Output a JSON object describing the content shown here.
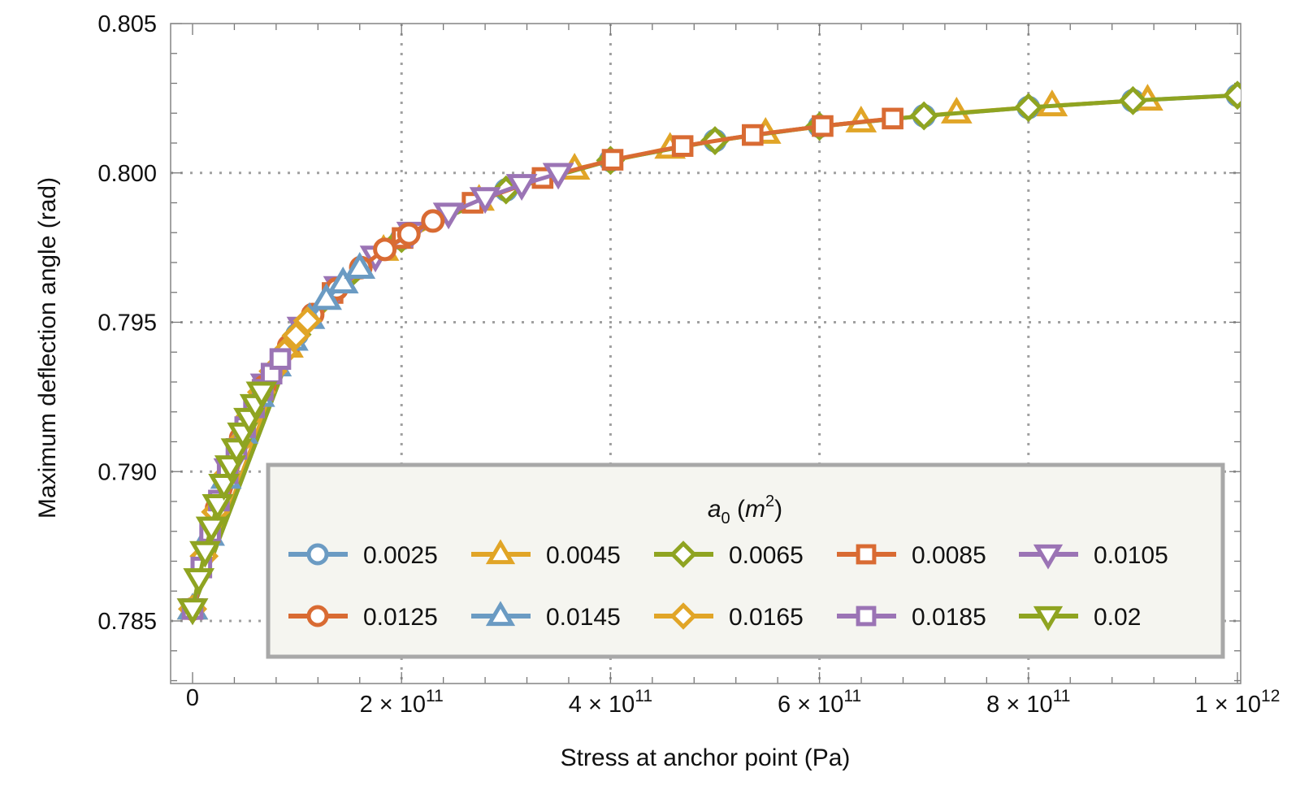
{
  "chart_data": {
    "type": "line",
    "title": "",
    "xlabel": "Stress at anchor point (Pa)",
    "ylabel": "Maximum deflection angle (rad)",
    "xlim": [
      0,
      1000000000000.0
    ],
    "ylim": [
      0.7829,
      0.805
    ],
    "x_unit_note": "series x values are in units of 1e11 Pa",
    "grid": true,
    "xticks": [
      {
        "value": 0,
        "label": "0",
        "mantissa": "",
        "exponent": ""
      },
      {
        "value": 200000000000.0,
        "label": "2 × 10^11",
        "mantissa": "2 × 10",
        "exponent": "11"
      },
      {
        "value": 400000000000.0,
        "label": "4 × 10^11",
        "mantissa": "4 × 10",
        "exponent": "11"
      },
      {
        "value": 600000000000.0,
        "label": "6 × 10^11",
        "mantissa": "6 × 10",
        "exponent": "11"
      },
      {
        "value": 800000000000.0,
        "label": "8 × 10^11",
        "mantissa": "8 × 10",
        "exponent": "11"
      },
      {
        "value": 1000000000000.0,
        "label": "1 × 10^12",
        "mantissa": "1 × 10",
        "exponent": "12"
      }
    ],
    "yticks": [
      {
        "value": 0.785,
        "label": "0.785"
      },
      {
        "value": 0.79,
        "label": "0.790"
      },
      {
        "value": 0.795,
        "label": "0.795"
      },
      {
        "value": 0.8,
        "label": "0.800"
      },
      {
        "value": 0.805,
        "label": "0.805"
      }
    ],
    "legend": {
      "placement": "bottom-right",
      "title_var": "a",
      "title_sub": "0",
      "title_unit": "m",
      "title_unit_exp": "2"
    },
    "series": [
      {
        "name": "0.0025",
        "color": "#6b9bc3",
        "marker": "circle",
        "x": [
          0,
          1,
          2,
          3,
          4,
          5,
          6,
          7,
          8,
          9,
          10
        ],
        "y": [
          0.7854,
          0.79459,
          0.7978,
          0.79943,
          0.80042,
          0.80108,
          0.80156,
          0.80191,
          0.80219,
          0.80242,
          0.8026
        ]
      },
      {
        "name": "0.0045",
        "color": "#e1a527",
        "marker": "triangle-up",
        "x": [
          0,
          0.914,
          1.828,
          2.742,
          3.656,
          4.57,
          5.484,
          6.398,
          7.312,
          8.226,
          9.14
        ],
        "y": [
          0.7854,
          0.79417,
          0.79741,
          0.79909,
          0.80013,
          0.80083,
          0.80133,
          0.80171,
          0.80201,
          0.80225,
          0.80244
        ]
      },
      {
        "name": "0.0065",
        "color": "#8fa421",
        "marker": "diamond",
        "x": [
          0,
          1,
          2,
          3,
          4,
          5,
          6,
          7,
          8,
          9,
          10
        ],
        "y": [
          0.7854,
          0.79459,
          0.7978,
          0.79943,
          0.80042,
          0.80108,
          0.80156,
          0.80191,
          0.80219,
          0.80242,
          0.8026
        ]
      },
      {
        "name": "0.0085",
        "color": "#d96b33",
        "marker": "square",
        "x": [
          0,
          0.67,
          1.34,
          2.01,
          2.68,
          3.35,
          4.02,
          4.69,
          5.36,
          6.03,
          6.7
        ],
        "y": [
          0.7854,
          0.79273,
          0.79598,
          0.79782,
          0.799,
          0.79983,
          0.80044,
          0.8009,
          0.80127,
          0.80157,
          0.80182
        ]
      },
      {
        "name": "0.0105",
        "color": "#9b74b5",
        "marker": "triangle-down",
        "x": [
          0,
          0.35,
          0.7,
          1.05,
          1.4,
          1.75,
          2.1,
          2.45,
          2.8,
          3.15,
          3.5
        ],
        "y": [
          0.7854,
          0.79009,
          0.79293,
          0.79483,
          0.79619,
          0.79721,
          0.79801,
          0.79865,
          0.79917,
          0.79961,
          0.79998
        ]
      },
      {
        "name": "0.0125",
        "color": "#d96b33",
        "marker": "circle",
        "x": [
          0,
          0.23,
          0.46,
          0.69,
          0.92,
          1.15,
          1.38,
          1.61,
          1.84,
          2.07,
          2.3
        ],
        "y": [
          0.7854,
          0.78877,
          0.79112,
          0.79286,
          0.7942,
          0.79526,
          0.79612,
          0.79683,
          0.79744,
          0.79795,
          0.79839
        ]
      },
      {
        "name": "0.0145",
        "color": "#6b9bc3",
        "marker": "triangle-up",
        "x": [
          0,
          0.16,
          0.32,
          0.48,
          0.64,
          0.8,
          0.96,
          1.12,
          1.28,
          1.44,
          1.6
        ],
        "y": [
          0.7854,
          0.78787,
          0.78978,
          0.79129,
          0.79252,
          0.79354,
          0.7944,
          0.79513,
          0.79577,
          0.79632,
          0.79681
        ]
      },
      {
        "name": "0.0165",
        "color": "#e1a527",
        "marker": "diamond",
        "x": [
          0,
          0.11,
          0.22,
          0.33,
          0.44,
          0.55,
          0.66,
          0.77,
          0.88,
          0.99,
          1.1
        ],
        "y": [
          0.7854,
          0.78717,
          0.78865,
          0.78989,
          0.79094,
          0.79186,
          0.79266,
          0.79336,
          0.79399,
          0.79455,
          0.79505
        ]
      },
      {
        "name": "0.0185",
        "color": "#9b74b5",
        "marker": "square",
        "x": [
          0,
          0.084,
          0.168,
          0.252,
          0.336,
          0.42,
          0.504,
          0.588,
          0.672,
          0.756,
          0.84
        ],
        "y": [
          0.7854,
          0.78679,
          0.78798,
          0.78903,
          0.78995,
          0.79076,
          0.79149,
          0.79215,
          0.79274,
          0.79328,
          0.79377
        ]
      },
      {
        "name": "0.02",
        "color": "#8fa421",
        "marker": "triangle-down",
        "x": [
          0,
          0.06,
          0.12,
          0.18,
          0.24,
          0.3,
          0.36,
          0.42,
          0.48,
          0.54,
          0.6,
          0.66
        ],
        "y": [
          0.7854,
          0.78641,
          0.78732,
          0.78814,
          0.78889,
          0.78957,
          0.79019,
          0.79076,
          0.79129,
          0.79178,
          0.79224,
          0.79266
        ]
      }
    ]
  }
}
